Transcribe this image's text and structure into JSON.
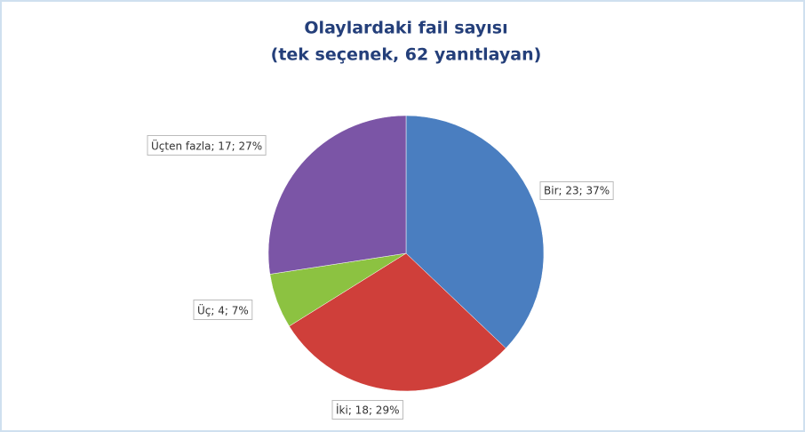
{
  "chart_data": {
    "type": "pie",
    "title": "Olaylardaki fail sayısı",
    "subtitle": "(tek seçenek, 62 yanıtlayan)",
    "categories": [
      "Bir",
      "İki",
      "Üç",
      "Üçten fazla"
    ],
    "values": [
      23,
      18,
      4,
      17
    ],
    "value_labels": [
      "Bir; 23; 37%",
      "İki; 18; 29%",
      "Üç; 4; 7%",
      "Üçten fazla; 17; 27%"
    ],
    "colors": [
      "#4a7ec0",
      "#cf3f3a",
      "#8cc241",
      "#7b55a6"
    ]
  }
}
